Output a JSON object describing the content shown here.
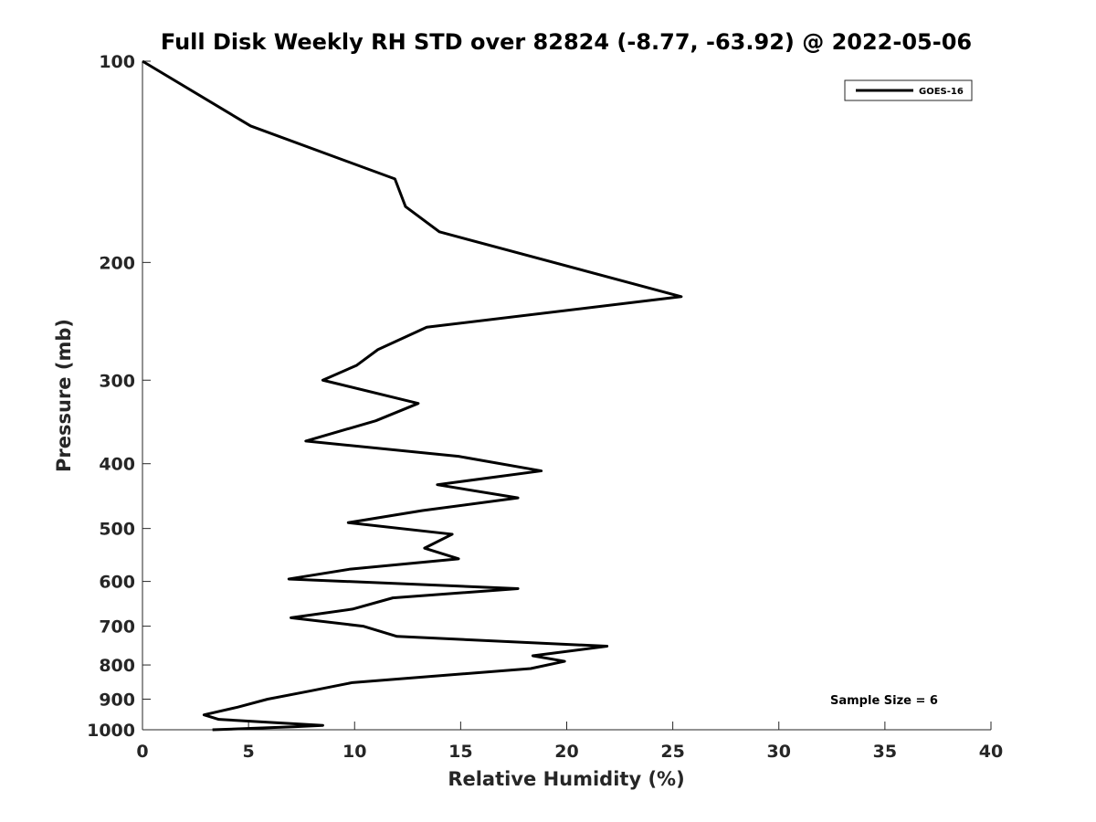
{
  "chart_data": {
    "type": "line",
    "title": "Full Disk Weekly RH STD over 82824 (-8.77, -63.92) @ 2022-05-06",
    "xlabel": "Relative Humidity (%)",
    "ylabel": "Pressure (mb)",
    "xlim": [
      0,
      40
    ],
    "ylim": [
      100,
      1000
    ],
    "y_scale": "log",
    "y_reversed": true,
    "grid": false,
    "legend_position": "top-right",
    "x_ticks": [
      "0",
      "5",
      "10",
      "15",
      "20",
      "25",
      "30",
      "35",
      "40"
    ],
    "y_ticks": [
      "100",
      "200",
      "300",
      "400",
      "500",
      "600",
      "700",
      "800",
      "900",
      "1000"
    ],
    "annotation": "Sample Size = 6",
    "series": [
      {
        "name": "GOES-16",
        "color": "#000000",
        "x": [
          0.0,
          5.1,
          11.9,
          12.4,
          14.0,
          25.4,
          13.4,
          11.1,
          10.1,
          8.5,
          13.0,
          11.0,
          7.7,
          14.9,
          18.8,
          13.9,
          17.7,
          13.2,
          9.7,
          14.6,
          13.3,
          14.9,
          9.8,
          6.9,
          17.7,
          11.8,
          9.9,
          7.0,
          10.4,
          12.0,
          21.9,
          18.4,
          19.9,
          18.3,
          9.9,
          7.9,
          5.9,
          4.5,
          2.9,
          3.6,
          8.5,
          7.1,
          3.3
        ],
        "y": [
          100,
          125,
          150,
          165,
          180,
          225,
          250,
          270,
          285,
          300,
          325,
          345,
          370,
          390,
          410,
          430,
          450,
          470,
          490,
          510,
          535,
          555,
          575,
          595,
          615,
          635,
          660,
          680,
          700,
          725,
          750,
          775,
          790,
          810,
          850,
          875,
          900,
          925,
          950,
          965,
          985,
          990,
          1000
        ]
      }
    ]
  }
}
